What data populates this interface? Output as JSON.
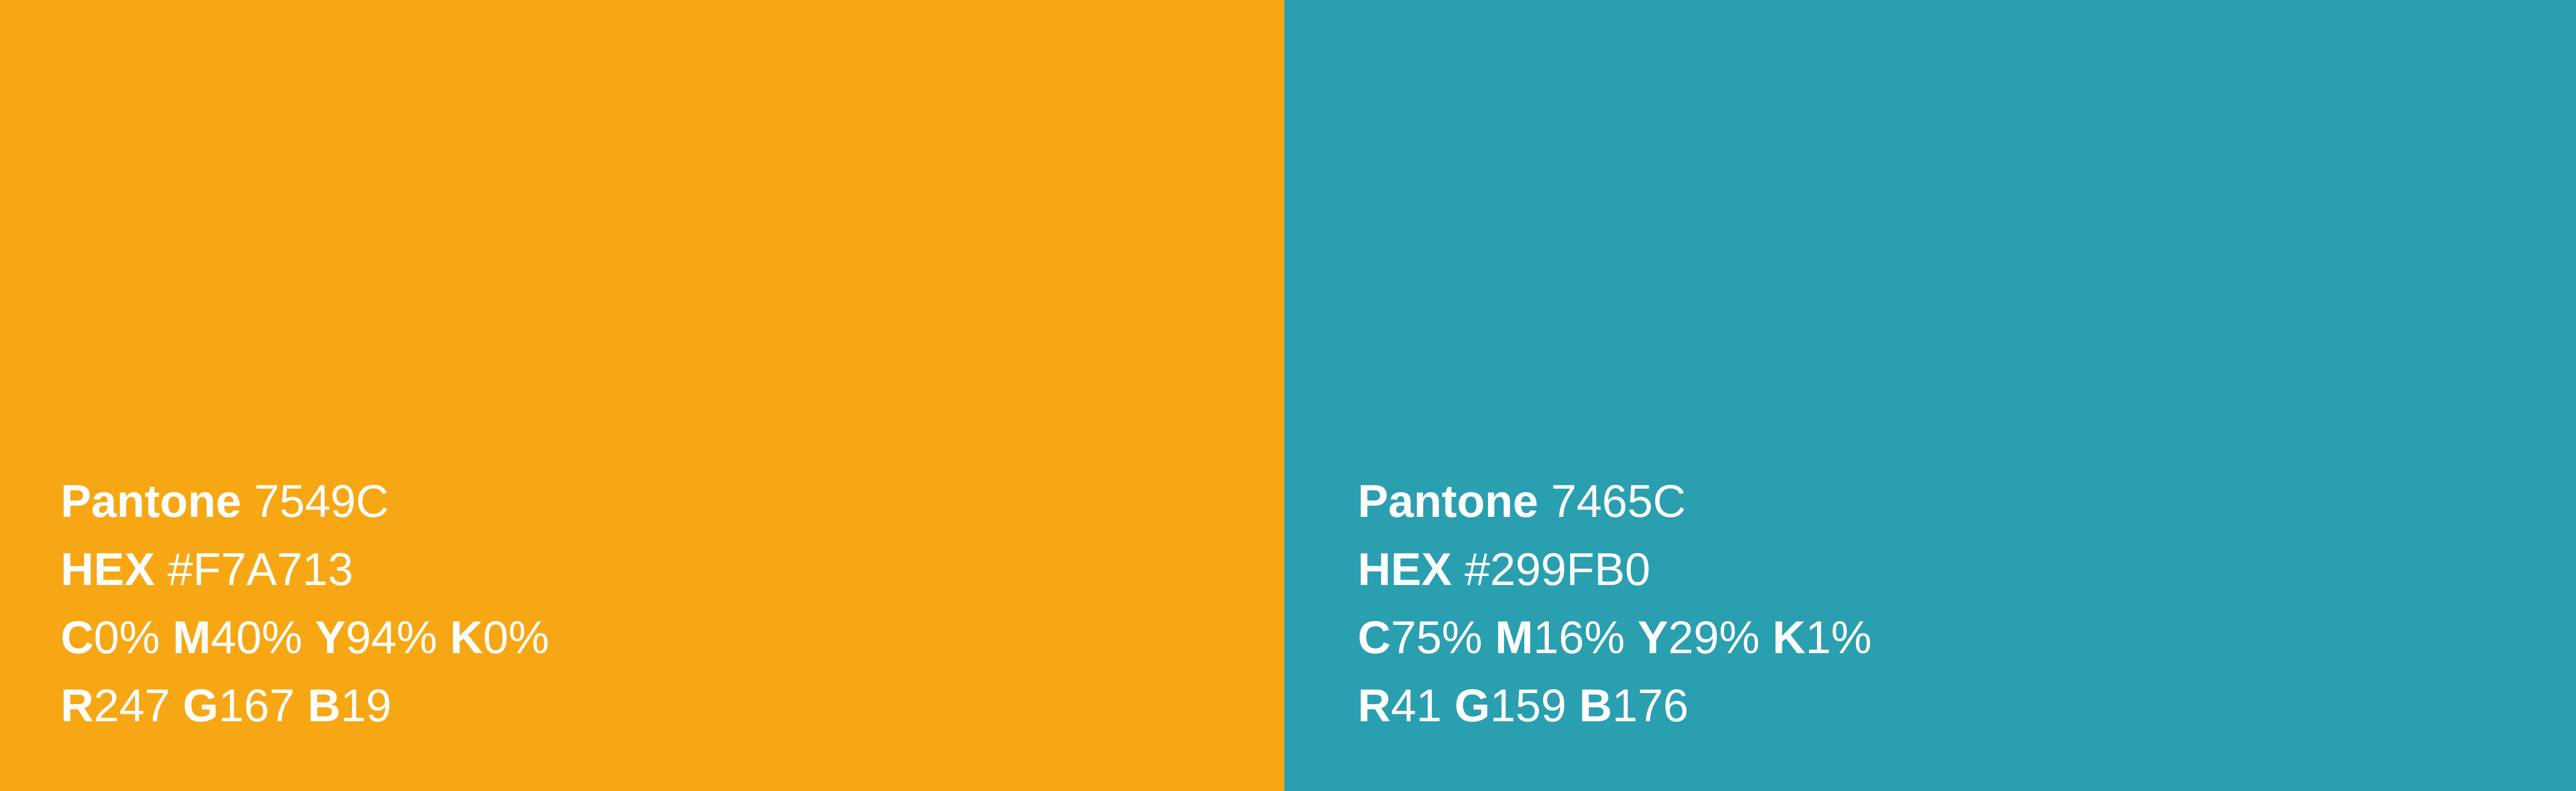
{
  "swatches": [
    {
      "color": "#F7A713",
      "pantone_label": "Pantone",
      "pantone_value": "7549C",
      "hex_label": "HEX",
      "hex_value": "#F7A713",
      "cmyk": [
        {
          "k": "C",
          "v": "0%"
        },
        {
          "k": "M",
          "v": "40%"
        },
        {
          "k": "Y",
          "v": "94%"
        },
        {
          "k": "K",
          "v": "0%"
        }
      ],
      "rgb": [
        {
          "k": "R",
          "v": "247"
        },
        {
          "k": "G",
          "v": "167"
        },
        {
          "k": "B",
          "v": "19"
        }
      ]
    },
    {
      "color": "#299FB0",
      "pantone_label": "Pantone",
      "pantone_value": "7465C",
      "hex_label": "HEX",
      "hex_value": "#299FB0",
      "cmyk": [
        {
          "k": "C",
          "v": "75%"
        },
        {
          "k": "M",
          "v": "16%"
        },
        {
          "k": "Y",
          "v": "29%"
        },
        {
          "k": "K",
          "v": "1%"
        }
      ],
      "rgb": [
        {
          "k": "R",
          "v": "41"
        },
        {
          "k": "G",
          "v": "159"
        },
        {
          "k": "B",
          "v": "176"
        }
      ]
    }
  ]
}
